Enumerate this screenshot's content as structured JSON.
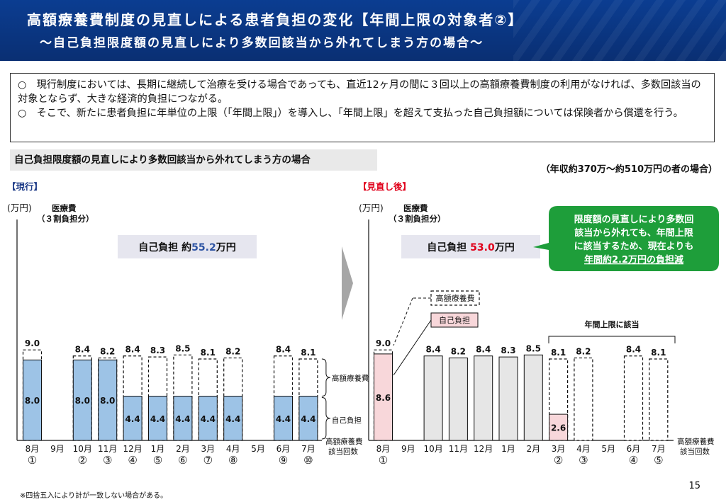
{
  "header": {
    "title": "高額療養費制度の見直しによる患者負担の変化【年間上限の対象者②】",
    "subtitle": "～自己負担限度額の見直しにより多数回該当から外れてしまう方の場合～"
  },
  "summary": {
    "points": [
      "○　現行制度においては、長期に継続して治療を受ける場合であっても、直近12ヶ月の間に３回以上の高額療養費制度の利用がなければ、多数回該当の対象とならず、大きな経済的負担につながる。",
      "○　そこで、新たに患者負担に年単位の上限（「年間上限」）を導入し、「年間上限」を超えて支払った自己負担額については保険者から償還を行う。"
    ]
  },
  "section_label": "自己負担限度額の見直しにより多数回該当から外れてしまう方の場合",
  "income_note": "（年収約370万～約510万円の者の場合）",
  "footnote": "※四捨五入により計が一致しない場合がある。",
  "page_number": "15",
  "colors": {
    "header_bg": "#0b3d91",
    "bar_blue": "#9dc3e6",
    "bar_pink": "#f8d7da",
    "bar_gray": "#e6e6e6",
    "callout_green": "#1e9e3a",
    "heading_blue": "#1f3c88",
    "heading_red": "#e0001a",
    "value_blue": "#2f55a4",
    "value_red": "#e0001a"
  },
  "chart_data": [
    {
      "type": "bar",
      "panel_label": "【現行】",
      "unit_label": "(万円)",
      "series_label_1": "医療費",
      "series_label_2": "（３割負担分）",
      "total_label_prefix": "自己負担 約",
      "total_value": "55.2",
      "total_unit": "万円",
      "categories": [
        "8月",
        "9月",
        "10月",
        "11月",
        "12月",
        "1月",
        "2月",
        "3月",
        "4月",
        "5月",
        "6月",
        "7月"
      ],
      "count_labels": [
        "①",
        "",
        "②",
        "③",
        "④",
        "⑤",
        "⑥",
        "⑦",
        "⑧",
        "",
        "⑨",
        "⑩"
      ],
      "x_axis_label_1": "高額療養費",
      "x_axis_label_2": "該当回数",
      "series": [
        {
          "name": "医療費（３割負担分）",
          "values": [
            9.0,
            null,
            8.4,
            8.2,
            8.4,
            8.3,
            8.5,
            8.1,
            8.2,
            null,
            8.4,
            8.1
          ]
        },
        {
          "name": "自己負担",
          "values": [
            8.0,
            null,
            8.0,
            8.0,
            4.4,
            4.4,
            4.4,
            4.4,
            4.4,
            null,
            4.4,
            4.4
          ]
        }
      ],
      "legend": {
        "kougaku": "高額療養費",
        "jiko": "自己負担"
      },
      "ylim": [
        0,
        9
      ]
    },
    {
      "type": "bar",
      "panel_label": "【見直し後】",
      "unit_label": "(万円)",
      "series_label_1": "医療費",
      "series_label_2": "（３割負担分）",
      "total_label_prefix": "自己負担 ",
      "total_value": "53.0",
      "total_unit": "万円",
      "categories": [
        "8月",
        "9月",
        "10月",
        "11月",
        "12月",
        "1月",
        "2月",
        "3月",
        "4月",
        "5月",
        "6月",
        "7月"
      ],
      "count_labels": [
        "①",
        "",
        "",
        "",
        "",
        "",
        "",
        "②",
        "③",
        "",
        "④",
        "⑤"
      ],
      "x_axis_label_1": "高額療養費",
      "x_axis_label_2": "該当回数",
      "series": [
        {
          "name": "医療費（３割負担分）",
          "values": [
            9.0,
            null,
            8.4,
            8.2,
            8.4,
            8.3,
            8.5,
            8.1,
            8.2,
            null,
            8.4,
            8.1
          ]
        },
        {
          "name": "自己負担",
          "values": [
            8.6,
            null,
            null,
            null,
            null,
            null,
            null,
            2.6,
            0,
            null,
            0,
            0
          ]
        }
      ],
      "legend": {
        "kougaku": "高額療養費",
        "jiko": "自己負担"
      },
      "annual_cap_label": "年間上限に該当",
      "callout_lines": [
        "限度額の見直しにより多数回",
        "該当から外れても、年間上限",
        "に該当するため、現在よりも",
        "年間約2.2万円の負担減"
      ],
      "ylim": [
        0,
        9
      ]
    }
  ]
}
